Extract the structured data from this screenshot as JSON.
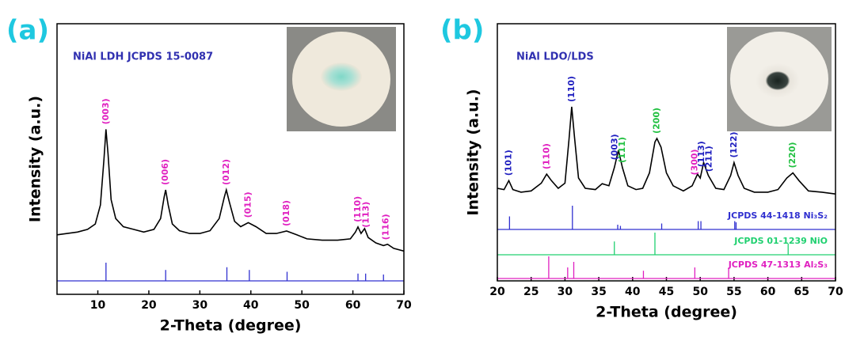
{
  "chart_data": [
    {
      "type": "xrd",
      "panel": "(a)",
      "title": "NiAl LDH  JCPDS 15-0087",
      "x_label": "2-Theta (degree)",
      "y_label": "Intensity (a.u.)",
      "xlim": [
        2,
        70
      ],
      "xticks": [
        10,
        20,
        30,
        40,
        50,
        60,
        70
      ],
      "ylim": [
        0,
        100
      ],
      "color": "#000000",
      "x": [
        2,
        4,
        6,
        8,
        9.5,
        10.5,
        11.2,
        11.6,
        12.0,
        12.6,
        13.5,
        15,
        17,
        19,
        21,
        22.3,
        23.0,
        23.3,
        23.8,
        24.6,
        26,
        28,
        30,
        32,
        33.8,
        34.8,
        35.2,
        35.8,
        36.8,
        38,
        39.5,
        41,
        43,
        45,
        47,
        49,
        51,
        54,
        57,
        59.5,
        60.5,
        61,
        61.6,
        62.3,
        63,
        64.5,
        66,
        66.8,
        68,
        70
      ],
      "values": [
        22,
        22.5,
        23,
        24,
        26,
        33,
        50,
        61,
        52,
        35,
        28,
        25,
        24,
        23,
        24,
        28,
        36,
        38.6,
        33,
        26,
        23.5,
        22.5,
        22.5,
        23.5,
        28,
        36,
        38.6,
        34,
        27,
        25,
        26.5,
        25,
        22.5,
        22.5,
        23.4,
        22,
        20.5,
        20,
        20,
        20.5,
        23,
        24.9,
        22.5,
        24.3,
        21,
        19,
        18,
        18.5,
        17,
        16
      ],
      "peak_labels": [
        {
          "text": "(003)",
          "x": 11.6,
          "color": "#e020c0"
        },
        {
          "text": "(006)",
          "x": 23.3,
          "color": "#e020c0"
        },
        {
          "text": "(012)",
          "x": 35.2,
          "color": "#e020c0"
        },
        {
          "text": "(015)",
          "x": 39.5,
          "color": "#e020c0"
        },
        {
          "text": "(018)",
          "x": 47,
          "color": "#e020c0"
        },
        {
          "text": "(110)",
          "x": 61,
          "color": "#e020c0"
        },
        {
          "text": "(113)",
          "x": 62.6,
          "color": "#e020c0"
        },
        {
          "text": "(116)",
          "x": 66.5,
          "color": "#e020c0"
        }
      ],
      "references": [
        {
          "color": "#3030d0",
          "positions": [
            11.6,
            23.3,
            35.3,
            39.7,
            47.1,
            61.0,
            62.5,
            66.0
          ],
          "intensities": [
            100,
            60,
            75,
            60,
            50,
            40,
            40,
            35
          ]
        }
      ]
    },
    {
      "type": "xrd",
      "panel": "(b)",
      "title": "NiAl LDO/LDS",
      "x_label": "2-Theta (degree)",
      "y_label": "Intensity (a.u.)",
      "xlim": [
        20,
        70
      ],
      "xticks": [
        20,
        25,
        30,
        35,
        40,
        45,
        50,
        55,
        60,
        65,
        70
      ],
      "ylim": [
        0,
        100
      ],
      "color": "#000000",
      "x": [
        20,
        21,
        21.7,
        22.3,
        23.5,
        25,
        26.5,
        27.3,
        28,
        29,
        30,
        30.6,
        31,
        31.4,
        32,
        33,
        34.5,
        35.5,
        36.5,
        37.3,
        37.9,
        38.5,
        39.3,
        40.5,
        41.5,
        42.5,
        43.3,
        43.6,
        44.2,
        45,
        46,
        47.5,
        48.8,
        49.6,
        50.0,
        50.5,
        51.2,
        52.3,
        53.5,
        54.5,
        55,
        55.6,
        56.5,
        58,
        60,
        61.5,
        62.8,
        63.7,
        64.6,
        66,
        68,
        70
      ],
      "values": [
        36,
        35.5,
        39,
        35.5,
        34.5,
        35,
        38,
        41.5,
        39,
        36,
        38,
        55,
        67.7,
        56,
        40,
        36,
        35.5,
        37.8,
        37,
        44,
        50.8,
        44,
        37,
        35.5,
        36,
        42,
        54,
        55.4,
        52,
        42,
        37,
        35,
        37,
        41.5,
        40,
        46,
        41,
        36,
        35.5,
        41,
        46,
        41,
        36,
        34.5,
        34.5,
        35.5,
        40,
        42,
        39,
        35,
        34.5,
        33.8
      ],
      "peak_labels": [
        {
          "text": "(101)",
          "x": 21.7,
          "color": "#2020c0"
        },
        {
          "text": "(110)",
          "x": 27.3,
          "color": "#e020c0"
        },
        {
          "text": "(110)",
          "x": 31,
          "color": "#2020c0"
        },
        {
          "text": "(003)",
          "x": 37.4,
          "color": "#2020c0"
        },
        {
          "text": "(111)",
          "x": 38.5,
          "color": "#20c040"
        },
        {
          "text": "(200)",
          "x": 43.6,
          "color": "#20c040"
        },
        {
          "text": "(300)",
          "x": 49.2,
          "color": "#e020c0"
        },
        {
          "text": "(113)",
          "x": 50.2,
          "color": "#2020c0"
        },
        {
          "text": "(211)",
          "x": 51.3,
          "color": "#2020c0"
        },
        {
          "text": "(122)",
          "x": 55,
          "color": "#2020c0"
        },
        {
          "text": "(220)",
          "x": 63.7,
          "color": "#20c040"
        }
      ],
      "references": [
        {
          "name": "JCPDS 44-1418 Ni₃S₂",
          "color": "#3030d0",
          "positions": [
            21.8,
            31.1,
            37.8,
            38.2,
            44.3,
            49.7,
            50.1,
            55.1,
            55.3
          ],
          "intensities": [
            55,
            100,
            20,
            15,
            25,
            35,
            35,
            35,
            30
          ]
        },
        {
          "name": "JCPDS 01-1239 NiO",
          "color": "#20d070",
          "positions": [
            37.3,
            43.3,
            63.0
          ],
          "intensities": [
            60,
            100,
            50
          ]
        },
        {
          "name": "JCPDS 47-1313 Al₂S₃",
          "color": "#e020c0",
          "positions": [
            27.6,
            30.4,
            31.3,
            41.6,
            49.2,
            54.2
          ],
          "intensities": [
            100,
            50,
            75,
            35,
            50,
            45
          ]
        }
      ]
    }
  ]
}
